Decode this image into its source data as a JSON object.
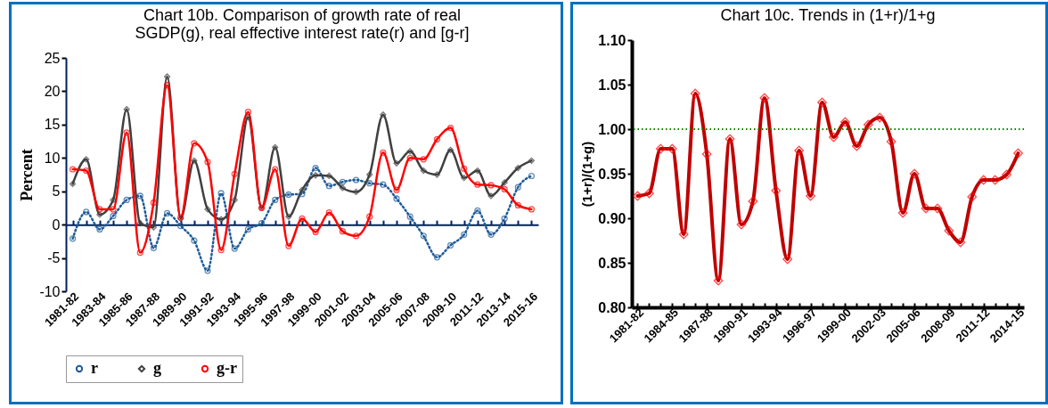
{
  "chart_data": [
    {
      "type": "line",
      "title": "Chart 10b. Comparison of growth rate of real SGDP(g), real effective interest rate(r) and [g-r]",
      "ylabel": "Percent",
      "categories": [
        "1981-82",
        null,
        "1983-84",
        null,
        "1985-86",
        null,
        "1987-88",
        null,
        "1989-90",
        null,
        "1991-92",
        null,
        "1993-94",
        null,
        "1995-96",
        null,
        "1997-98",
        null,
        "1999-00",
        null,
        "2001-02",
        null,
        "2003-04",
        null,
        "2005-06",
        null,
        "2007-08",
        null,
        "2009-10",
        null,
        "2011-12",
        null,
        "2013-14",
        null,
        "2015-16"
      ],
      "series": [
        {
          "name": "r",
          "color": "#1f5c99",
          "marker": "circle",
          "line_style": "dotted",
          "values": [
            -2.1,
            1.9,
            -0.7,
            1.3,
            3.7,
            4.3,
            -3.5,
            1.7,
            -0.2,
            -2.4,
            -6.9,
            4.7,
            -3.6,
            -0.7,
            0.2,
            3.7,
            4.5,
            4.6,
            8.5,
            5.8,
            6.4,
            6.7,
            6.2,
            6.0,
            3.9,
            1.2,
            -1.7,
            -4.9,
            -3.1,
            -1.5,
            2.1,
            -1.5,
            0.9,
            5.6,
            7.3
          ]
        },
        {
          "name": "g",
          "color": "#404040",
          "marker": "diamond",
          "line_style": "solid",
          "values": [
            6.1,
            9.8,
            1.5,
            3.7,
            17.3,
            0.2,
            -0.4,
            22.2,
            0.9,
            9.6,
            2.3,
            0.8,
            3.7,
            16.1,
            2.5,
            11.6,
            1.2,
            5.2,
            7.4,
            7.3,
            5.5,
            4.9,
            7.5,
            16.5,
            9.2,
            11.0,
            8.1,
            7.5,
            11.2,
            7.0,
            8.1,
            4.3,
            6.3,
            8.5,
            9.6
          ]
        },
        {
          "name": "g-r",
          "color": "#ff0000",
          "marker": "circle",
          "line_style": "solid",
          "values": [
            8.3,
            8.1,
            2.3,
            2.3,
            13.8,
            -4.2,
            3.3,
            20.9,
            1.1,
            12.2,
            9.4,
            -3.8,
            7.6,
            16.9,
            2.5,
            8.3,
            -3.2,
            0.9,
            -1.1,
            1.8,
            -1.0,
            -1.7,
            1.2,
            10.8,
            5.2,
            10.0,
            9.8,
            12.8,
            14.5,
            8.4,
            6.0,
            5.9,
            5.3,
            2.9,
            2.3
          ]
        }
      ],
      "ylim": [
        -10,
        25
      ],
      "yticks": [
        -10,
        -5,
        0,
        5,
        10,
        15,
        20,
        25
      ],
      "legend": "bottom",
      "grid": false
    },
    {
      "type": "line",
      "title": "Chart 10c. Trends in (1+r)/1+g",
      "ylabel": "(1+r)/(1+g)",
      "categories": [
        "1981-82",
        null,
        null,
        "1984-85",
        null,
        null,
        "1987-88",
        null,
        null,
        "1990-91",
        null,
        null,
        "1993-94",
        null,
        null,
        "1996-97",
        null,
        null,
        "1999-00",
        null,
        null,
        "2002-03",
        null,
        null,
        "2005-06",
        null,
        null,
        "2008-09",
        null,
        null,
        "2011-12",
        null,
        null,
        "2014-15"
      ],
      "values": [
        0.925,
        0.928,
        0.978,
        0.978,
        0.882,
        1.04,
        0.972,
        0.83,
        0.989,
        0.893,
        0.919,
        1.035,
        0.931,
        0.854,
        0.976,
        0.925,
        1.03,
        0.991,
        1.008,
        0.981,
        1.005,
        1.013,
        0.986,
        0.906,
        0.95,
        0.911,
        0.911,
        0.886,
        0.873,
        0.924,
        0.943,
        0.943,
        0.949,
        0.973
      ],
      "color": "#c00000",
      "marker": "diamond",
      "ylim": [
        0.8,
        1.1
      ],
      "yticks": [
        {
          "value": 0.8,
          "label": "0.80"
        },
        {
          "value": 0.85,
          "label": "0.85"
        },
        {
          "value": 0.9,
          "label": "0.90"
        },
        {
          "value": 0.95,
          "label": "0.95"
        },
        {
          "value": 1.0,
          "label": "1.00"
        },
        {
          "value": 1.05,
          "label": "1.05"
        },
        {
          "value": 1.1,
          "label": "1.10"
        }
      ],
      "ref_lines": [
        {
          "axis": "y",
          "value": 1.0,
          "color": "#008000",
          "line_style": "dotted"
        }
      ],
      "grid": false
    }
  ]
}
